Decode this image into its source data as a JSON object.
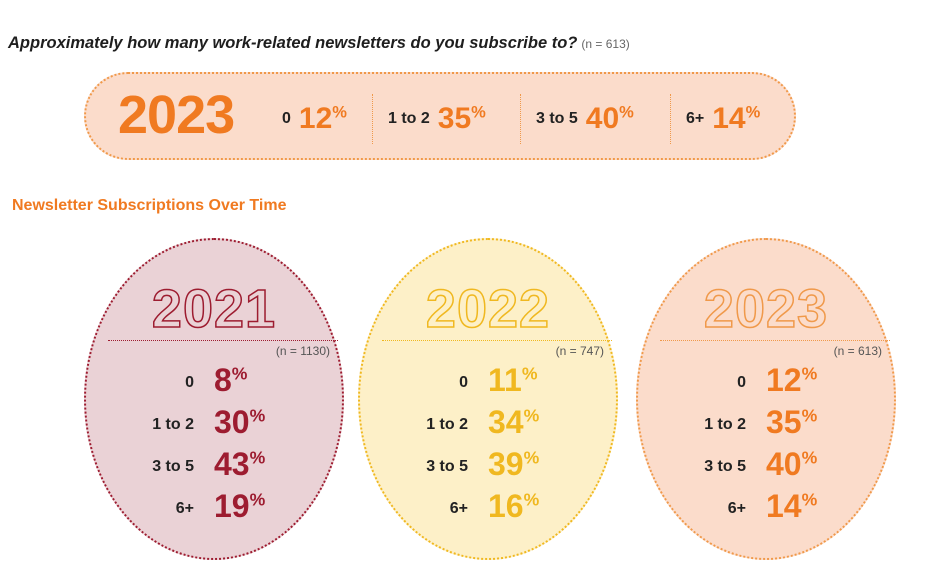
{
  "question": "Approximately how many work-related newsletters do you subscribe to?",
  "question_n": "(n = 613)",
  "banner": {
    "year": "2023",
    "items": [
      {
        "label": "0",
        "value": "12",
        "unit": "%"
      },
      {
        "label": "1 to 2",
        "value": "35",
        "unit": "%"
      },
      {
        "label": "3 to 5",
        "value": "40",
        "unit": "%"
      },
      {
        "label": "6+",
        "value": "14",
        "unit": "%"
      }
    ]
  },
  "subtitle": "Newsletter Subscriptions Over Time",
  "circles": [
    {
      "year": "2021",
      "n": "(n = 1130)"
    },
    {
      "year": "2022",
      "n": "(n = 747)"
    },
    {
      "year": "2023",
      "n": "(n = 613)"
    }
  ],
  "colors": {
    "2021": "#9d1c30",
    "2022": "#f0b820",
    "2023": "#f07a21"
  },
  "chart_data": {
    "type": "table",
    "title": "Newsletter Subscriptions Over Time",
    "categories": [
      "0",
      "1 to 2",
      "3 to 5",
      "6+"
    ],
    "unit": "%",
    "series": [
      {
        "name": "2021",
        "values": [
          8,
          30,
          43,
          19
        ]
      },
      {
        "name": "2022",
        "values": [
          11,
          34,
          39,
          16
        ]
      },
      {
        "name": "2023",
        "values": [
          12,
          35,
          40,
          14
        ]
      }
    ]
  }
}
